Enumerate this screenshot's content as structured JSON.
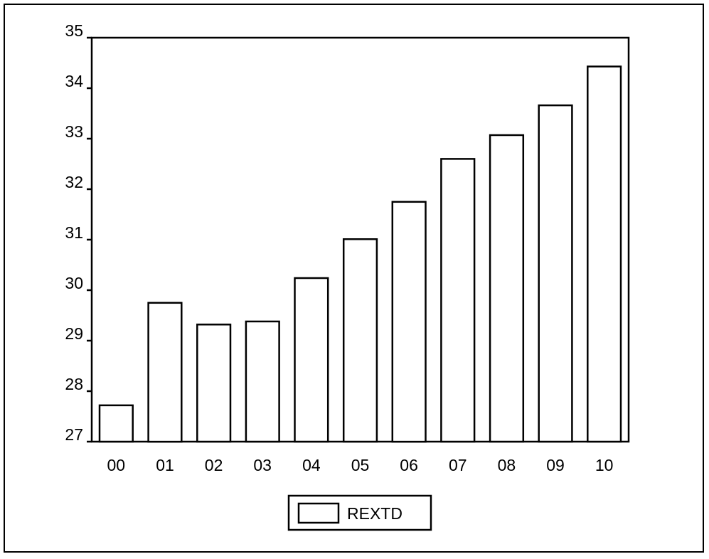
{
  "chart_data": {
    "type": "bar",
    "categories": [
      "00",
      "01",
      "02",
      "03",
      "04",
      "05",
      "06",
      "07",
      "08",
      "09",
      "10"
    ],
    "series": [
      {
        "name": "REXTD",
        "values": [
          27.72,
          29.75,
          29.32,
          29.38,
          30.24,
          31.01,
          31.75,
          32.6,
          33.07,
          33.66,
          34.43
        ]
      }
    ],
    "xlabel": "",
    "ylabel": "",
    "ylim": [
      27,
      35
    ],
    "yticks": [
      "27",
      "28",
      "29",
      "30",
      "31",
      "32",
      "33",
      "34",
      "35"
    ],
    "grid": false,
    "legend_position": "bottom-center",
    "colors": {
      "bar_fill": "#ffffff",
      "bar_stroke": "#000000",
      "axis": "#000000"
    }
  }
}
